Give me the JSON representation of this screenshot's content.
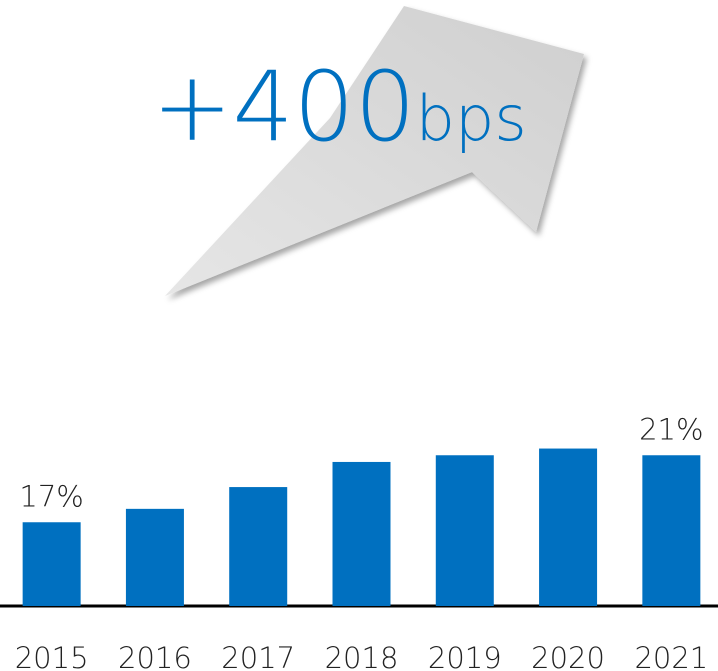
{
  "chart_data": {
    "type": "bar",
    "headline": {
      "number": "+400",
      "unit": "bps"
    },
    "categories": [
      "2015",
      "2016",
      "2017",
      "2018",
      "2019",
      "2020",
      "2021"
    ],
    "values": [
      17,
      17.8,
      19.1,
      20.6,
      21.0,
      21.4,
      21.0
    ],
    "value_labels": [
      "17%",
      null,
      null,
      null,
      null,
      null,
      "21%"
    ],
    "color": "#0070c0",
    "ylim": [
      12,
      22
    ]
  }
}
